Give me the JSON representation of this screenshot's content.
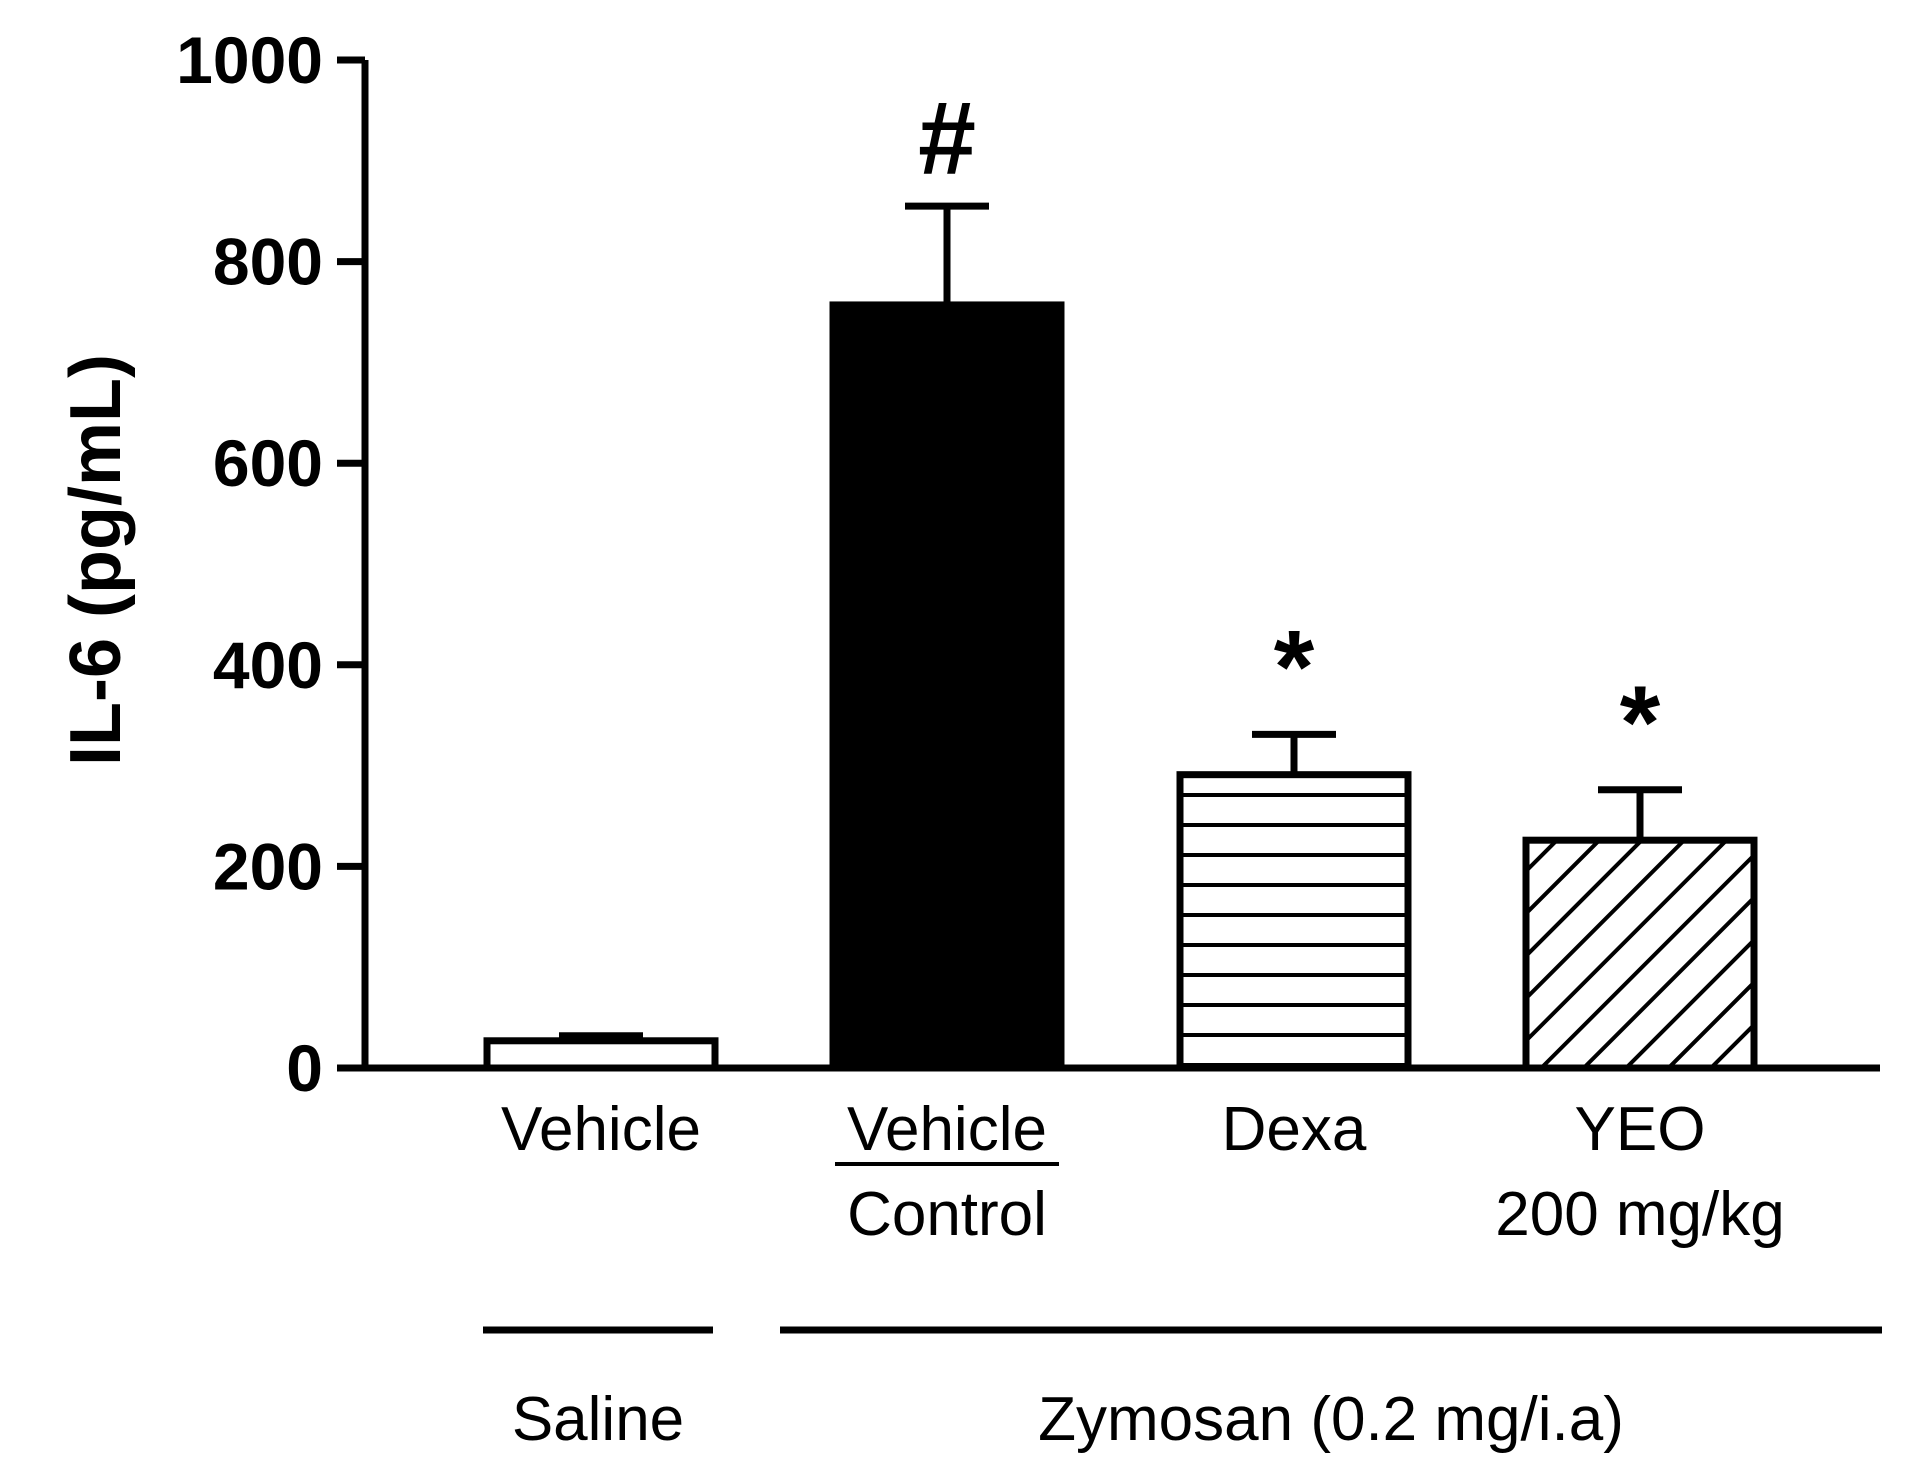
{
  "chart_data": {
    "type": "bar",
    "ylabel": "IL-6 (pg/mL)",
    "xlabel": "",
    "ylim": [
      0,
      1000
    ],
    "yticks": [
      0,
      200,
      400,
      600,
      800,
      1000
    ],
    "grid": false,
    "legend": "none",
    "categories": [
      {
        "lines": [
          "Vehicle"
        ]
      },
      {
        "lines": [
          "Vehicle",
          "Control"
        ],
        "underline_first": true
      },
      {
        "lines": [
          "Dexa"
        ]
      },
      {
        "lines": [
          "YEO",
          "200 mg/kg"
        ]
      }
    ],
    "values": [
      27,
      757,
      291,
      226
    ],
    "errors": [
      5,
      98,
      40,
      50
    ],
    "significance": [
      "",
      "#",
      "*",
      "*"
    ],
    "fills": [
      "white",
      "black",
      "horizontal-lines",
      "diagonal-lines"
    ],
    "groups": [
      {
        "label": "Saline",
        "span": [
          0,
          0
        ]
      },
      {
        "label": "Zymosan (0.2 mg/i.a)",
        "span": [
          1,
          3
        ]
      }
    ]
  }
}
